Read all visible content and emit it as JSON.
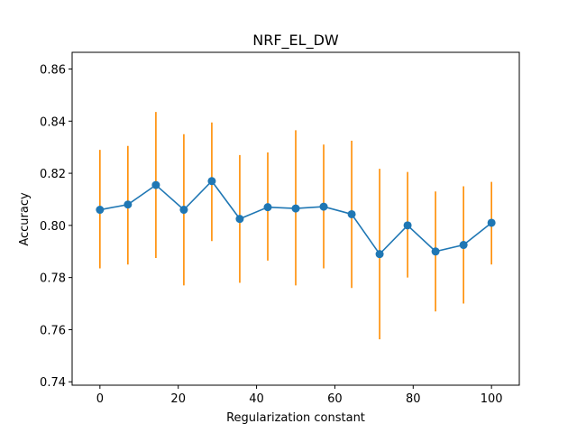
{
  "chart_data": {
    "type": "line",
    "title": "NRF_EL_DW",
    "xlabel": "Regularization constant",
    "ylabel": "Accuracy",
    "xlim": [
      -7.1,
      107.1
    ],
    "ylim": [
      0.7387,
      0.8664
    ],
    "xticks": [
      0,
      20,
      40,
      60,
      80,
      100
    ],
    "yticks": [
      0.74,
      0.76,
      0.78,
      0.8,
      0.82,
      0.84,
      0.86
    ],
    "series": [
      {
        "marker": "circle",
        "color": "#1f77b4",
        "x": [
          0,
          7.14,
          14.29,
          21.43,
          28.57,
          35.71,
          42.86,
          50.0,
          57.14,
          64.29,
          71.43,
          78.57,
          85.71,
          92.86,
          100.0
        ],
        "y": [
          0.806,
          0.808,
          0.8155,
          0.806,
          0.817,
          0.8025,
          0.807,
          0.8065,
          0.8072,
          0.8043,
          0.789,
          0.8,
          0.79,
          0.7925,
          0.801
        ],
        "error_low": [
          0.7835,
          0.785,
          0.7875,
          0.777,
          0.794,
          0.778,
          0.7865,
          0.777,
          0.7835,
          0.776,
          0.7563,
          0.78,
          0.767,
          0.77,
          0.785
        ],
        "error_high": [
          0.829,
          0.8305,
          0.8435,
          0.835,
          0.8395,
          0.827,
          0.828,
          0.8365,
          0.831,
          0.8325,
          0.8217,
          0.8205,
          0.813,
          0.815,
          0.8167
        ],
        "error_color": "#ff8c00"
      }
    ],
    "grid": false,
    "legend": "none"
  }
}
